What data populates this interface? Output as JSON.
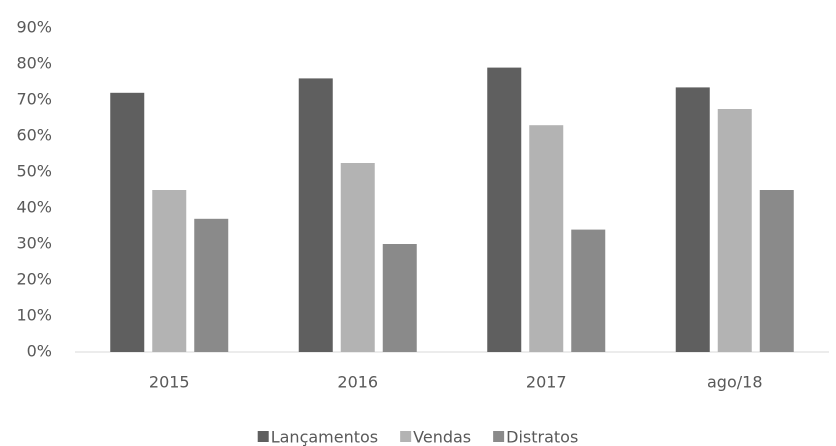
{
  "chart_data": {
    "type": "bar",
    "categories": [
      "2015",
      "2016",
      "2017",
      "ago/18"
    ],
    "series": [
      {
        "name": "Lançamentos",
        "color": "#5f5f5f",
        "values": [
          72,
          76,
          79,
          73.5
        ]
      },
      {
        "name": "Vendas",
        "color": "#b3b3b3",
        "values": [
          45,
          52.5,
          63,
          67.5
        ]
      },
      {
        "name": "Distratos",
        "color": "#8a8a8a",
        "values": [
          37,
          30,
          34,
          45
        ]
      }
    ],
    "ylim": [
      0,
      90
    ],
    "yticks": [
      {
        "value": 0,
        "label": "0%"
      },
      {
        "value": 10,
        "label": "10%"
      },
      {
        "value": 20,
        "label": "20%"
      },
      {
        "value": 30,
        "label": "30%"
      },
      {
        "value": 40,
        "label": "40%"
      },
      {
        "value": 50,
        "label": "50%"
      },
      {
        "value": 60,
        "label": "60%"
      },
      {
        "value": 70,
        "label": "70%"
      },
      {
        "value": 80,
        "label": "80%"
      },
      {
        "value": 90,
        "label": "90%"
      }
    ],
    "grid": false,
    "legend": "bottom"
  }
}
